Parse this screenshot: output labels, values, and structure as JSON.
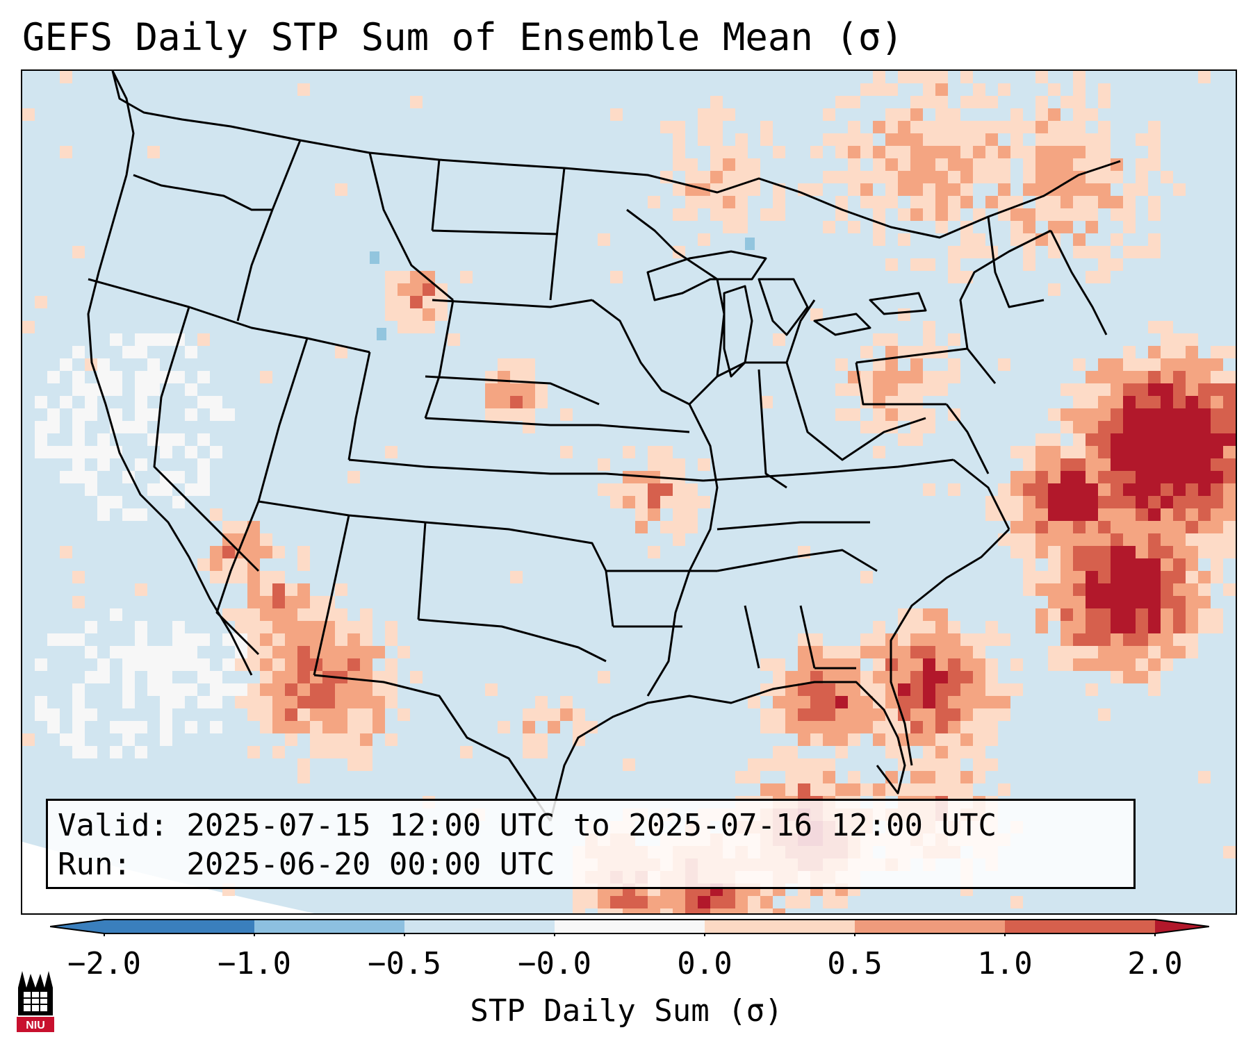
{
  "title": "GEFS Daily STP Sum of Ensemble Mean (σ)",
  "valid_text": "Valid: 2025-07-15 12:00 UTC to 2025-07-16 12:00 UTC",
  "run_text": "Run:   2025-06-20 00:00 UTC",
  "colorbar": {
    "label": "STP Daily Sum (σ)",
    "ticks": [
      "−2.0",
      "−1.0",
      "−0.5",
      "−0.0",
      "0.0",
      "0.5",
      "1.0",
      "2.0"
    ],
    "colors": [
      "#3a7fbd",
      "#8dc0e0",
      "#cfe4f0",
      "#f7f7f7",
      "#fcd9c4",
      "#ef9b7c",
      "#d6604d",
      "#b2182b"
    ]
  },
  "logo": {
    "text": "NIU",
    "icon": "niu-logo-icon"
  },
  "legend_colors": {
    "background_low": "#d1e5f0",
    "white": "#f7f7f7",
    "light_red": "#fddbc7",
    "mid_red": "#f4a582",
    "red": "#d6604d",
    "dark_red": "#b2182b",
    "blue": "#92c5de"
  }
}
